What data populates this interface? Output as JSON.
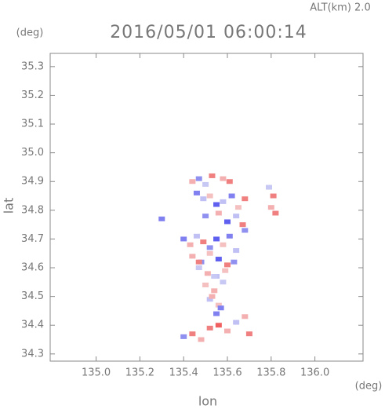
{
  "chart_data": {
    "type": "scatter",
    "title": "2016/05/01 06:00:14",
    "subtitle": "ALT(km) 2.0",
    "x_label": "lon",
    "y_label": "lat",
    "x_unit": "(deg)",
    "y_unit": "(deg)",
    "xlim": [
      134.79,
      136.22
    ],
    "ylim": [
      34.275,
      35.346
    ],
    "xticks": [
      {
        "value": 135.0,
        "label": "135.0"
      },
      135.2,
      135.4,
      135.6,
      135.8,
      {
        "value": 136.0,
        "label": "136.0"
      }
    ],
    "yticks": [
      35.3,
      35.2,
      35.1,
      {
        "value": 35.0,
        "label": "35.0"
      },
      34.9,
      34.8,
      34.7,
      34.6,
      34.5,
      34.4,
      34.3
    ],
    "x": [
      135.44,
      135.47,
      135.5,
      135.53,
      135.58,
      135.61,
      135.46,
      135.49,
      135.52,
      135.55,
      135.58,
      135.62,
      135.65,
      135.68,
      135.5,
      135.56,
      135.6,
      135.64,
      135.67,
      135.79,
      135.81,
      135.8,
      135.82,
      135.3,
      135.68,
      135.4,
      135.43,
      135.46,
      135.49,
      135.52,
      135.55,
      135.58,
      135.61,
      135.64,
      135.44,
      135.48,
      135.52,
      135.56,
      135.6,
      135.47,
      135.51,
      135.55,
      135.59,
      135.63,
      135.5,
      135.54,
      135.58,
      135.52,
      135.56,
      135.55,
      135.4,
      135.44,
      135.48,
      135.52,
      135.56,
      135.6,
      135.64,
      135.68,
      135.7,
      135.47,
      135.54,
      135.57,
      135.53
    ],
    "y": [
      34.9,
      34.91,
      34.89,
      34.92,
      34.91,
      34.9,
      34.86,
      34.84,
      34.85,
      34.82,
      34.83,
      34.85,
      34.81,
      34.84,
      34.78,
      34.79,
      34.76,
      34.78,
      34.75,
      34.88,
      34.85,
      34.81,
      34.79,
      34.77,
      34.73,
      34.7,
      34.68,
      34.71,
      34.69,
      34.67,
      34.7,
      34.68,
      34.71,
      34.66,
      34.64,
      34.62,
      34.65,
      34.63,
      34.61,
      34.6,
      34.58,
      34.57,
      34.59,
      34.62,
      34.54,
      34.52,
      34.55,
      34.49,
      34.47,
      34.44,
      34.36,
      34.37,
      34.35,
      34.39,
      34.4,
      34.38,
      34.41,
      34.43,
      34.37,
      34.62,
      34.57,
      34.46,
      34.5
    ],
    "colors": [
      "#f4b0b0",
      "#9090f0",
      "#c8c8f4",
      "#f08080",
      "#f4b0b0",
      "#f08080",
      "#8080f0",
      "#c0c0f4",
      "#f4c0c0",
      "#6060f0",
      "#c0c0f4",
      "#8080f0",
      "#f4c0c0",
      "#f08080",
      "#9090f0",
      "#f4b0b0",
      "#6060f0",
      "#c0c0f4",
      "#f08080",
      "#c8c8f4",
      "#f08080",
      "#f4b0b0",
      "#f08080",
      "#8080f0",
      "#9090f0",
      "#8080f0",
      "#f4b0b0",
      "#c0c0f4",
      "#f08080",
      "#9090f0",
      "#6060f0",
      "#f4c0c0",
      "#8080f0",
      "#c0c0f4",
      "#f4b0b0",
      "#9090f0",
      "#f4c0c0",
      "#6060f0",
      "#f08080",
      "#c8c8f4",
      "#f4b0b0",
      "#c0c0f4",
      "#f4c0c0",
      "#9090f0",
      "#f4c0c0",
      "#f4b0b0",
      "#c8c8f4",
      "#c0c0f4",
      "#f4c0c0",
      "#8080f0",
      "#9090f0",
      "#f08080",
      "#f4b0b0",
      "#f08080",
      "#f06060",
      "#f4b0b0",
      "#c0c0f4",
      "#f4b0b0",
      "#f08080",
      "#f08080",
      "#c8c8f4",
      "#8080f0",
      "#f4b0b0"
    ]
  }
}
